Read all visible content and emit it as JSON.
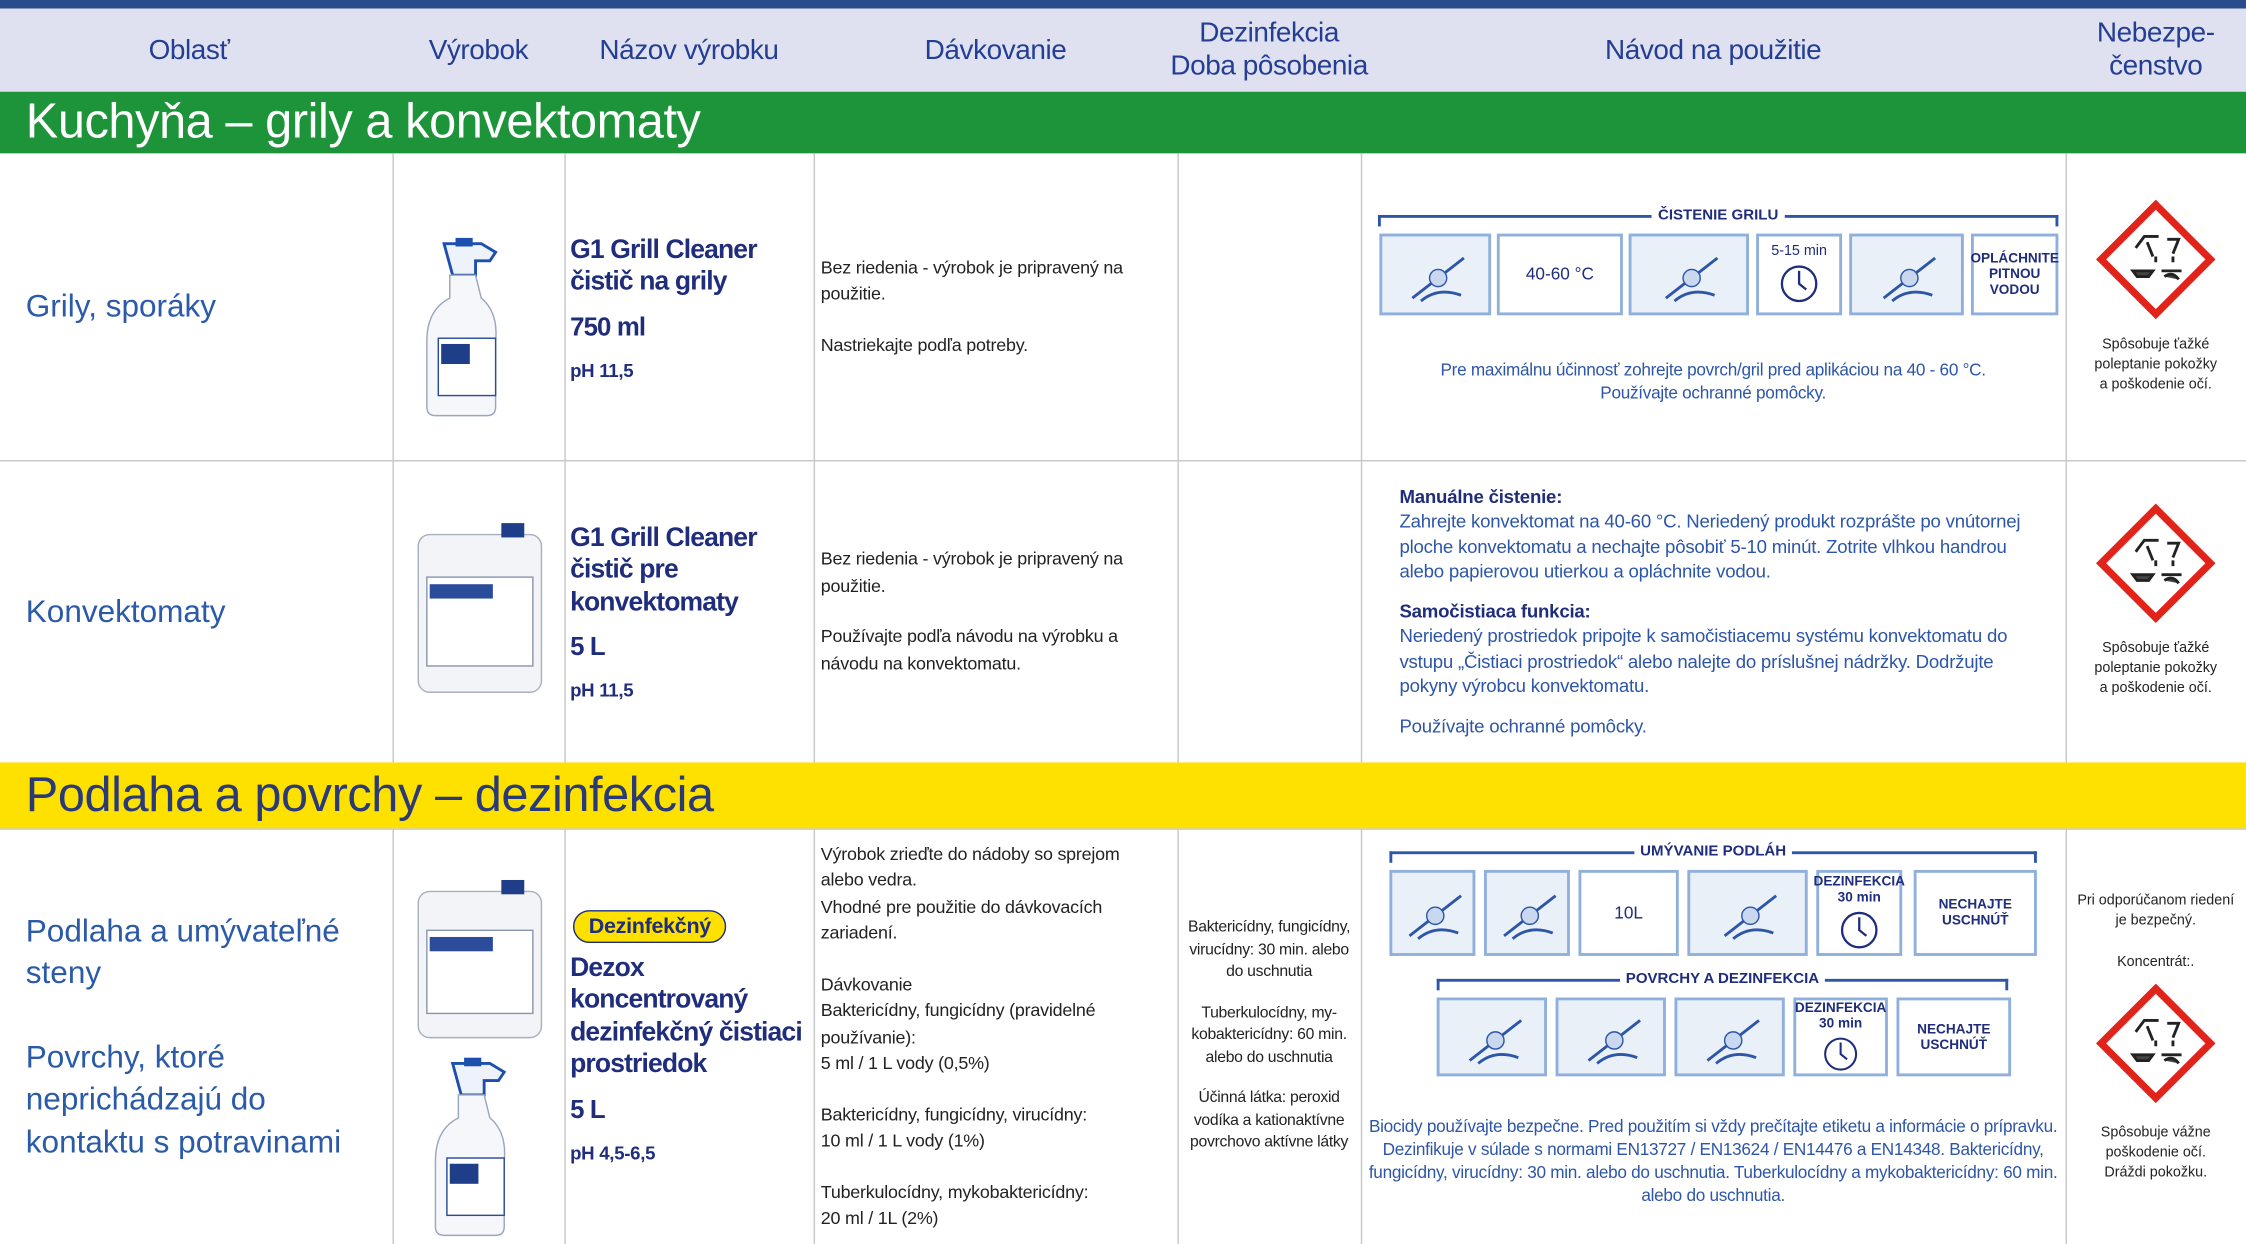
{
  "header": {
    "columns": [
      [
        "Oblasť"
      ],
      [
        "Výrobok"
      ],
      [
        "Názov výrobku"
      ],
      [
        "Dávkovanie"
      ],
      [
        "Dezinfekcia",
        "Doba pôsobenia"
      ],
      [
        "Návod na použitie"
      ],
      [
        "Nebezpe-",
        "čenstvo"
      ]
    ]
  },
  "sections": [
    {
      "title": "Kuchyňa – grily a konvektomaty",
      "rows": [
        {
          "area": [
            [
              "Grily, sporáky"
            ]
          ],
          "product": {
            "name": [
              "G1 Grill Cleaner",
              "čistič na grily"
            ],
            "volume": "750 ml",
            "ph": "pH 11,5"
          },
          "dosage": [
            [
              "Bez riedenia - výrobok je pripravený na",
              "použitie."
            ],
            [
              "Nastriekajte podľa potreby."
            ]
          ],
          "instructions": {
            "pictograms": [
              {
                "title": "ČISTENIE GRILU",
                "icons": [
                  [],
                  [
                    "40-60 °C"
                  ],
                  [],
                  [
                    "5-15 min"
                  ],
                  [],
                  [
                    "OPLÁCHNITE",
                    "PITNOU",
                    "VODOU"
                  ]
                ]
              }
            ],
            "note": [
              "Pre maximálnu účinnosť zohrejte povrch/gril pred aplikáciou na 40 - 60 °C.",
              "Používajte ochranné pomôcky."
            ]
          },
          "hazard": {
            "text": [
              "Spôsobuje ťažké",
              "poleptanie pokožky",
              "a poškodenie očí."
            ]
          }
        },
        {
          "area": [
            [
              "Konvektomaty"
            ]
          ],
          "product": {
            "name": [
              "G1 Grill Cleaner",
              "čistič pre",
              "konvektomaty"
            ],
            "volume": "5 L",
            "ph": "pH 11,5"
          },
          "dosage": [
            [
              "Bez riedenia - výrobok je pripravený na",
              "použitie."
            ],
            [
              "Používajte podľa návodu na výrobku a",
              "návodu na konvektomatu."
            ]
          ],
          "instructions": {
            "blocks": [
              {
                "heading": "Manuálne čistenie:",
                "lines": [
                  "Zahrejte konvektomat na 40-60 °C. Neriedený produkt rozprášte po vnútornej",
                  "ploche konvektomatu a nechajte pôsobiť 5-10 minút. Zotrite vlhkou handrou",
                  "alebo papierovou utierkou a opláchnite vodou."
                ]
              },
              {
                "heading": "Samočistiaca funkcia:",
                "lines": [
                  "Neriedený prostriedok pripojte k samočistiacemu systému konvektomatu do",
                  "vstupu „Čistiaci prostriedok“ alebo nalejte do príslušnej nádržky. Dodržujte",
                  "pokyny výrobcu konvektomatu."
                ]
              },
              {
                "lines": [
                  "Používajte ochranné pomôcky."
                ]
              }
            ]
          },
          "hazard": {
            "text": [
              "Spôsobuje ťažké",
              "poleptanie pokožky",
              "a poškodenie očí."
            ]
          }
        }
      ]
    },
    {
      "title": "Podlaha a povrchy – dezinfekcia",
      "rows": [
        {
          "area": [
            [
              "Podlaha a umývateľné",
              "steny"
            ],
            [
              "Povrchy, ktoré",
              "neprichádzajú do",
              "kontaktu s potravinami"
            ]
          ],
          "product": {
            "badge": "Dezinfekčný",
            "name": [
              "Dezox",
              "koncentrovaný",
              "dezinfekčný čistiaci",
              "prostriedok"
            ],
            "volume": "5 L",
            "ph": "pH 4,5-6,5"
          },
          "dosage": [
            [
              "Výrobok zrieďte do nádoby so sprejom",
              "alebo vedra.",
              "Vhodné pre použitie do dávkovacích",
              "zariadení."
            ],
            [
              "Dávkovanie",
              "Baktericídny, fungicídny (pravidelné",
              "používanie):",
              "5 ml / 1 L vody (0,5%)"
            ],
            [
              "Baktericídny, fungicídny, virucídny:",
              "10 ml / 1 L vody (1%)"
            ],
            [
              "Tuberkulocídny, mykobaktericídny:",
              "20 ml / 1L (2%)"
            ]
          ],
          "disinfection": [
            [
              "Baktericídny, fungicídny,",
              "virucídny: 30 min. alebo",
              "do uschnutia"
            ],
            [
              "Tuberkulocídny, my-",
              "kobaktericídny: 60 min.",
              "alebo do uschnutia"
            ],
            [
              "Účinná látka: peroxid",
              "vodíka a kationaktívne",
              "povrchovo aktívne látky"
            ]
          ],
          "instructions": {
            "pictograms": [
              {
                "title": "UMÝVANIE PODLÁH",
                "icons": [
                  [],
                  [],
                  [
                    "10L"
                  ],
                  [],
                  [
                    "DEZINFEKCIA",
                    "30 min"
                  ],
                  [
                    "NECHAJTE",
                    "USCHNÚŤ"
                  ]
                ]
              },
              {
                "title": "POVRCHY A DEZINFEKCIA",
                "icons": [
                  [],
                  [],
                  [],
                  [
                    "DEZINFEKCIA",
                    "30 min"
                  ],
                  [
                    "NECHAJTE",
                    "USCHNÚŤ"
                  ]
                ]
              }
            ],
            "note": [
              "Biocidy používajte bezpečne. Pred použitím si vždy prečítajte etiketu a informácie o prípravku.",
              "Dezinfikuje v súlade s normami EN13727 / EN13624 / EN14476 a EN14348. Baktericídny,",
              "fungicídny, virucídny: 30 min. alebo do uschnutia. Tuberkulocídny a mykobaktericídny: 60 min.",
              "alebo do uschnutia."
            ]
          },
          "hazard": {
            "top": [
              "Pri odporúčanom riedení",
              "je bezpečný."
            ],
            "concentrate": "Koncentrát:.",
            "text": [
              "Spôsobuje vážne",
              "poškodenie očí.",
              "Dráždi pokožku."
            ]
          }
        }
      ]
    }
  ]
}
